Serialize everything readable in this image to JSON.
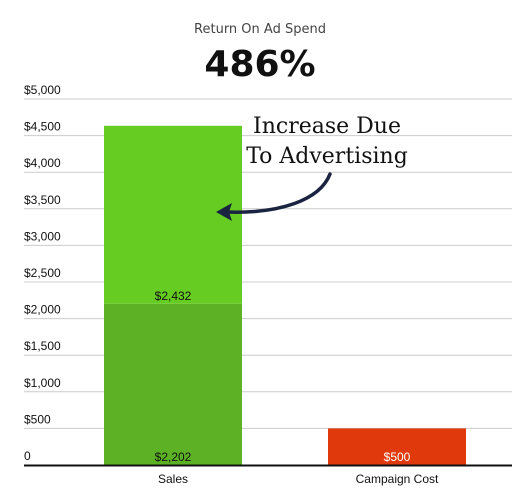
{
  "chart_data": {
    "type": "bar",
    "subtitle": "Return On Ad Spend",
    "title": "486%",
    "categories": [
      "Sales",
      "Campaign Cost"
    ],
    "series": [
      {
        "values": [
          2202,
          500
        ],
        "labels": [
          "$2,202",
          "$500"
        ],
        "colors": [
          "#5cb224",
          "#e03a0c"
        ]
      },
      {
        "values": [
          2432,
          0
        ],
        "labels": [
          "$2,432",
          ""
        ],
        "colors": [
          "#66cc22",
          "#e03a0c"
        ]
      }
    ],
    "ylim": [
      0,
      5000
    ],
    "yticks": [
      0,
      500,
      1000,
      1500,
      2000,
      2500,
      3000,
      3500,
      4000,
      4500,
      5000
    ],
    "ytick_labels": [
      "0",
      "$500",
      "$1,000",
      "$1,500",
      "$2,000",
      "$2,500",
      "$3,000",
      "$3,500",
      "$4,000",
      "$4,500",
      "$5,000"
    ],
    "grid": true,
    "annotation": {
      "line1": "Increase Due",
      "line2": "To Advertising",
      "color": "#1a2440"
    }
  }
}
